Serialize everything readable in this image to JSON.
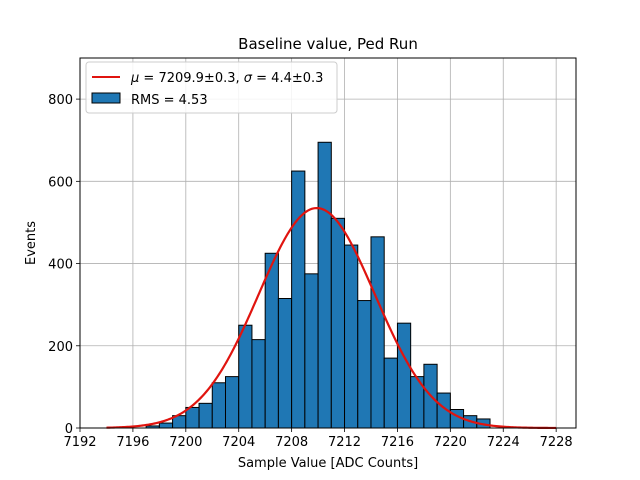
{
  "chart_data": {
    "type": "bar",
    "title": "Baseline value, Ped Run",
    "xlabel": "Sample Value [ADC Counts]",
    "ylabel": "Events",
    "xlim": [
      7192,
      7229.5
    ],
    "ylim": [
      0,
      900
    ],
    "grid": true,
    "legend_position": "top-left",
    "bin_width": 1,
    "bin_left_edges": [
      7197,
      7198,
      7199,
      7200,
      7201,
      7202,
      7203,
      7204,
      7205,
      7206,
      7207,
      7208,
      7209,
      7210,
      7211,
      7212,
      7213,
      7214,
      7215,
      7216,
      7217,
      7218,
      7219,
      7220,
      7221,
      7222
    ],
    "counts": [
      5,
      12,
      30,
      50,
      60,
      110,
      125,
      250,
      215,
      425,
      315,
      625,
      375,
      695,
      510,
      445,
      310,
      465,
      170,
      255,
      125,
      155,
      85,
      45,
      30,
      22
    ],
    "bar_color": "#1f77b4",
    "bar_edge_color": "#000000",
    "fit": {
      "mu": 7209.9,
      "sigma": 4.4,
      "amplitude": 535,
      "x_range": [
        7194,
        7228
      ],
      "color": "#e0140f"
    },
    "xticks": [
      "7192",
      "7196",
      "7200",
      "7204",
      "7208",
      "7212",
      "7216",
      "7220",
      "7224",
      "7228"
    ],
    "yticks": [
      "0",
      "200",
      "400",
      "600",
      "800"
    ],
    "legend": [
      {
        "kind": "line",
        "label_mu": "μ",
        "label_mu_eq": " = 7209.9±0.3, ",
        "label_sigma": "σ",
        "label_sigma_eq": " = 4.4±0.3"
      },
      {
        "kind": "patch",
        "label": "RMS = 4.53"
      }
    ]
  }
}
